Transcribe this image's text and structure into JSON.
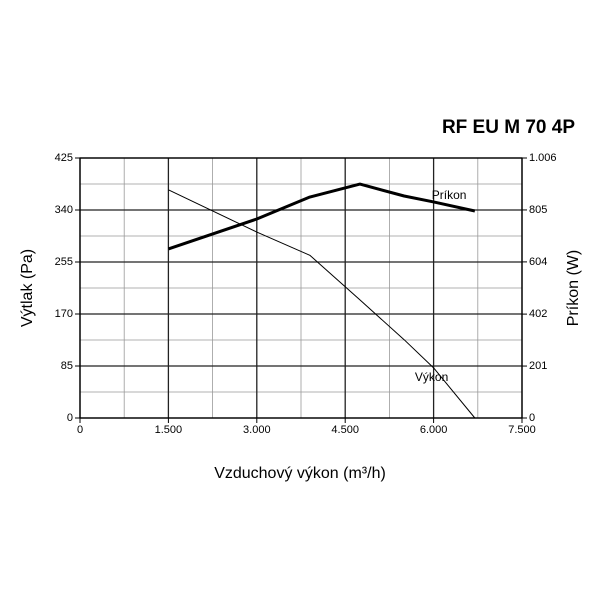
{
  "chart_data": {
    "type": "line",
    "title": "RF EU M 70 4P",
    "x_label": "Vzduchový výkon (m³/h)",
    "y_label": "Výtlak (Pa)",
    "y2_label": "Príkon (W)",
    "x": [
      1500,
      3000,
      3900,
      4750,
      5500,
      6000,
      6700
    ],
    "series": [
      {
        "name": "Výkon",
        "color": "#000000",
        "line_width": 1,
        "values": [
          373,
          304,
          266,
          193,
          128,
          82,
          0
        ]
      },
      {
        "name": "Príkon",
        "color": "#000000",
        "line_width": 3,
        "axis": "y2",
        "values": [
          654,
          770,
          855,
          905,
          859,
          836,
          801
        ]
      }
    ],
    "xlim": [
      0,
      7500
    ],
    "xticks": [
      0,
      {
        "value": 1500,
        "label": "1.500"
      },
      {
        "value": 3000,
        "label": "3.000"
      },
      {
        "value": 4500,
        "label": "4.500"
      },
      {
        "value": 6000,
        "label": "6.000"
      },
      {
        "value": 7500,
        "label": "7.500"
      }
    ],
    "ylim": [
      0,
      425
    ],
    "yticks": [
      0,
      85,
      170,
      255,
      340,
      425
    ],
    "y2lim": [
      0,
      1006
    ],
    "y2ticks": [
      0,
      201,
      402,
      604,
      805,
      {
        "value": 1006,
        "label": "1.006"
      }
    ],
    "grid": true
  }
}
